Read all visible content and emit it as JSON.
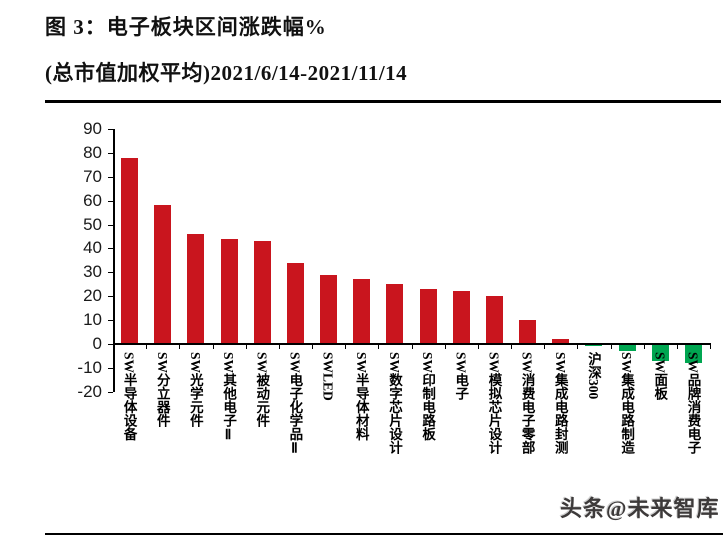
{
  "header": {
    "title": "图 3：电子板块区间涨跌幅%",
    "subtitle": "(总市值加权平均)2021/6/14-2021/11/14"
  },
  "watermark": "头条@未来智库",
  "chart_data": {
    "type": "bar",
    "title": "电子板块区间涨跌幅%（总市值加权平均）2021/6/14-2021/11/14",
    "categories": [
      "SW半导体设备",
      "SW分立器件",
      "SW光学元件",
      "SW其他电子Ⅱ",
      "SW被动元件",
      "SW电子化学品Ⅱ",
      "SWLED",
      "SW半导体材料",
      "SW数字芯片设计",
      "SW印制电路板",
      "SW电子",
      "SW模拟芯片设计",
      "SW消费电子零部",
      "SW集成电路封测",
      "沪深300",
      "SW集成电路制造",
      "SW面板",
      "SW品牌消费电子"
    ],
    "values": [
      78,
      58,
      46,
      44,
      43,
      34,
      29,
      27,
      25,
      23,
      22,
      20,
      10,
      2,
      -1,
      -3,
      -7,
      -8
    ],
    "yticks": [
      90,
      80,
      70,
      60,
      50,
      40,
      30,
      20,
      10,
      0,
      -10,
      -20
    ],
    "ylim": [
      -20,
      90
    ],
    "xlabel": "",
    "ylabel": "",
    "grid": false,
    "legend": null,
    "colors": {
      "positive": "#C9151E",
      "negative": "#00A651",
      "axis": "#000000"
    }
  }
}
